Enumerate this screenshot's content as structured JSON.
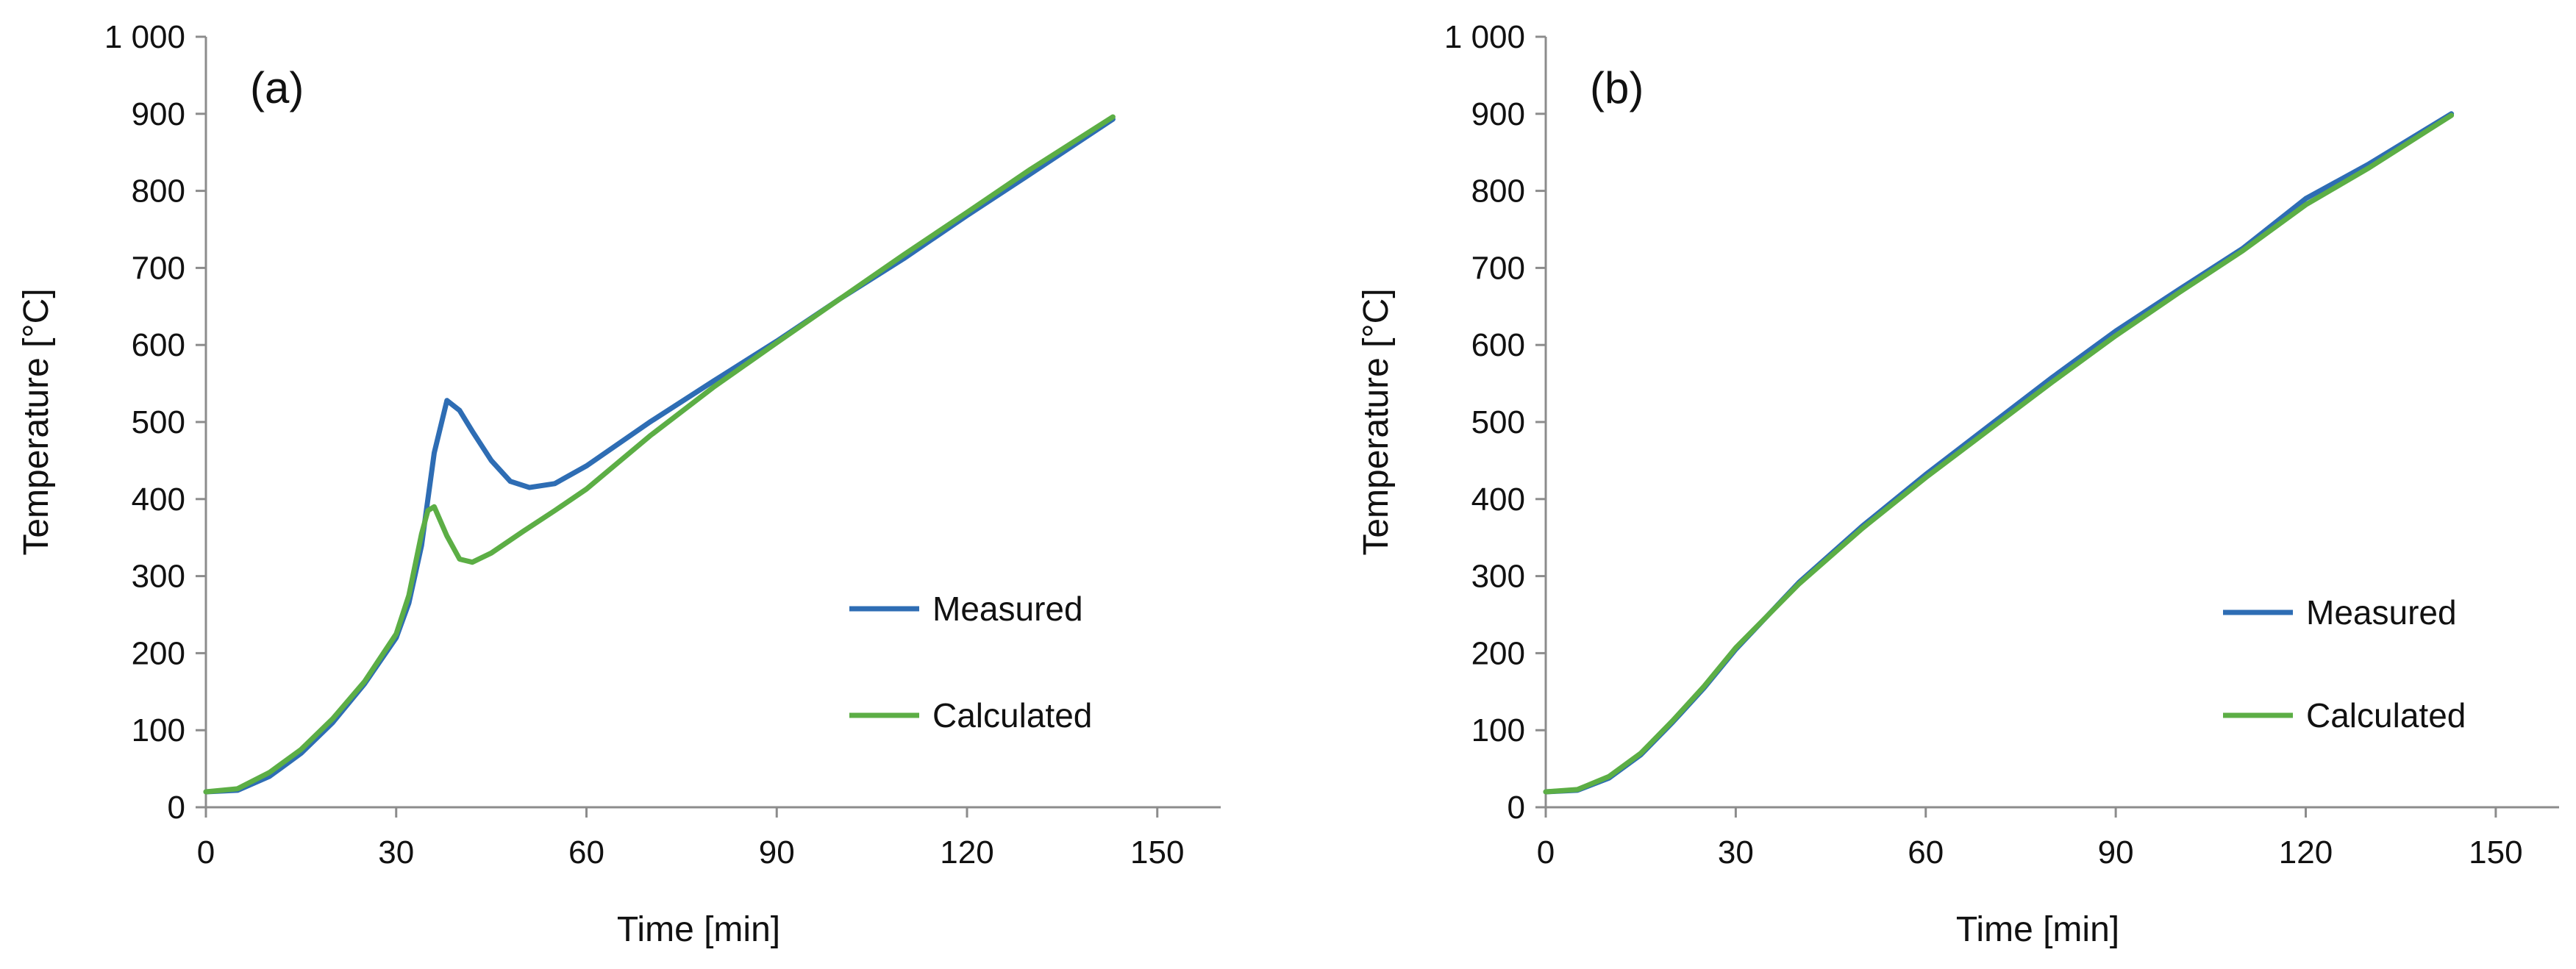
{
  "chart_data": [
    {
      "type": "line",
      "panel_label": "(a)",
      "title": "",
      "xlabel": "Time [min]",
      "ylabel": "Temperature [°C]",
      "xlim": [
        0,
        160
      ],
      "ylim": [
        0,
        1000
      ],
      "xticks": [
        0,
        30,
        60,
        90,
        120,
        150
      ],
      "yticks": [
        0,
        100,
        200,
        300,
        400,
        500,
        600,
        700,
        800,
        900,
        1000
      ],
      "xtick_labels": [
        "0",
        "30",
        "60",
        "90",
        "120",
        "150"
      ],
      "ytick_labels": [
        "0",
        "100",
        "200",
        "300",
        "400",
        "500",
        "600",
        "700",
        "800",
        "900",
        "1 000"
      ],
      "grid": false,
      "legend_position": "right-middle",
      "series": [
        {
          "name": "Measured",
          "color": "#2e6db4",
          "x": [
            0,
            5,
            10,
            15,
            20,
            25,
            30,
            32,
            34,
            36,
            38,
            40,
            42,
            45,
            48,
            51,
            55,
            60,
            70,
            80,
            90,
            100,
            110,
            120,
            130,
            143
          ],
          "y": [
            20,
            22,
            40,
            70,
            110,
            160,
            220,
            265,
            340,
            460,
            528,
            515,
            488,
            450,
            423,
            415,
            420,
            443,
            500,
            553,
            605,
            660,
            712,
            768,
            822,
            893
          ]
        },
        {
          "name": "Calculated",
          "color": "#5cae45",
          "x": [
            0,
            5,
            10,
            15,
            20,
            25,
            30,
            32,
            34,
            35,
            36,
            38,
            40,
            42,
            45,
            50,
            55,
            60,
            70,
            80,
            90,
            100,
            110,
            120,
            130,
            143
          ],
          "y": [
            20,
            24,
            45,
            75,
            115,
            163,
            225,
            275,
            355,
            385,
            390,
            352,
            322,
            318,
            330,
            358,
            385,
            413,
            482,
            545,
            603,
            660,
            717,
            772,
            828,
            896
          ]
        }
      ]
    },
    {
      "type": "line",
      "panel_label": "(b)",
      "title": "",
      "xlabel": "Time [min]",
      "ylabel": "Temperature [°C]",
      "xlim": [
        0,
        160
      ],
      "ylim": [
        0,
        1000
      ],
      "xticks": [
        0,
        30,
        60,
        90,
        120,
        150
      ],
      "yticks": [
        0,
        100,
        200,
        300,
        400,
        500,
        600,
        700,
        800,
        900,
        1000
      ],
      "xtick_labels": [
        "0",
        "30",
        "60",
        "90",
        "120",
        "150"
      ],
      "ytick_labels": [
        "0",
        "100",
        "200",
        "300",
        "400",
        "500",
        "600",
        "700",
        "800",
        "900",
        "1 000"
      ],
      "grid": false,
      "legend_position": "right-middle",
      "series": [
        {
          "name": "Measured",
          "color": "#2e6db4",
          "x": [
            0,
            5,
            10,
            15,
            20,
            25,
            30,
            40,
            50,
            60,
            70,
            80,
            90,
            100,
            110,
            120,
            130,
            143
          ],
          "y": [
            20,
            22,
            38,
            68,
            110,
            155,
            205,
            292,
            365,
            432,
            495,
            558,
            618,
            672,
            725,
            790,
            835,
            900
          ]
        },
        {
          "name": "Calculated",
          "color": "#5cae45",
          "x": [
            0,
            5,
            10,
            15,
            20,
            25,
            30,
            40,
            50,
            60,
            70,
            80,
            90,
            100,
            110,
            120,
            130,
            143
          ],
          "y": [
            20,
            23,
            40,
            70,
            112,
            157,
            207,
            290,
            362,
            428,
            490,
            552,
            612,
            668,
            722,
            782,
            830,
            898
          ]
        }
      ]
    }
  ]
}
